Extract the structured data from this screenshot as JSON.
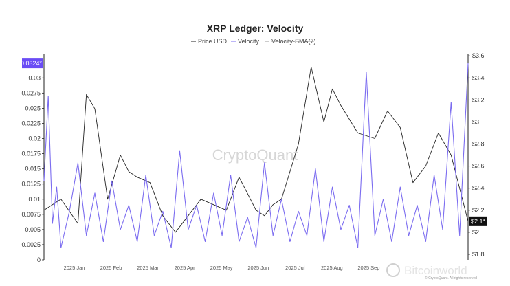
{
  "chart_data": {
    "type": "line",
    "title": "XRP Ledger: Velocity",
    "legend": {
      "placement": "top-center",
      "items": [
        {
          "name": "Price USD",
          "color": "#222222",
          "style": "solid"
        },
        {
          "name": "Velocity",
          "color": "#7b6cf0",
          "style": "solid"
        },
        {
          "name": "Velocity-SMA(7)",
          "color": "#9a9a9a",
          "style": "strikethrough"
        }
      ]
    },
    "x_labels": [
      "2025 Jan",
      "2025 Feb",
      "2025 Mar",
      "2025 Apr",
      "2025 May",
      "2025 Jun",
      "2025 Jul",
      "2025 Aug",
      "2025 Sep"
    ],
    "left_axis": {
      "label": "Velocity",
      "range": [
        0,
        0.034
      ],
      "ticks": [
        "0",
        "0.0025",
        "0.005",
        "0.0075",
        "0.01",
        "0.0125",
        "0.015",
        "0.0175",
        "0.02",
        "0.0225",
        "0.025",
        "0.0275",
        "0.03"
      ],
      "current_label": "0.0324*",
      "current_value": 0.0324
    },
    "right_axis": {
      "label": "Price USD",
      "range": [
        1.75,
        3.62
      ],
      "ticks": [
        "$1.8",
        "$2",
        "$2.2",
        "$2.4",
        "$2.6",
        "$2.8",
        "$3",
        "$3.2",
        "$3.4",
        "$3.6"
      ],
      "current_label": "$2.1*",
      "current_value": 2.1
    },
    "series": [
      {
        "name": "Price USD",
        "axis": "right",
        "color": "#222222",
        "t": [
          0,
          0.04,
          0.08,
          0.1,
          0.12,
          0.15,
          0.18,
          0.2,
          0.22,
          0.25,
          0.28,
          0.31,
          0.34,
          0.37,
          0.4,
          0.43,
          0.46,
          0.48,
          0.5,
          0.52,
          0.54,
          0.56,
          0.6,
          0.63,
          0.66,
          0.68,
          0.7,
          0.74,
          0.78,
          0.81,
          0.84,
          0.87,
          0.9,
          0.93,
          0.96,
          1.0
        ],
        "values": [
          2.2,
          2.3,
          2.08,
          3.25,
          3.12,
          2.3,
          2.7,
          2.55,
          2.5,
          2.45,
          2.15,
          2.0,
          2.15,
          2.3,
          2.25,
          2.2,
          2.5,
          2.35,
          2.2,
          2.15,
          2.25,
          2.3,
          2.8,
          3.5,
          3.0,
          3.3,
          3.15,
          2.9,
          2.85,
          3.1,
          2.95,
          2.45,
          2.6,
          2.9,
          2.7,
          2.1
        ]
      },
      {
        "name": "Velocity",
        "axis": "left",
        "color": "#7b6cf0",
        "t": [
          0,
          0.01,
          0.02,
          0.03,
          0.04,
          0.06,
          0.08,
          0.1,
          0.12,
          0.14,
          0.16,
          0.18,
          0.2,
          0.22,
          0.24,
          0.26,
          0.28,
          0.3,
          0.32,
          0.34,
          0.36,
          0.38,
          0.4,
          0.42,
          0.44,
          0.46,
          0.48,
          0.5,
          0.52,
          0.54,
          0.56,
          0.58,
          0.6,
          0.62,
          0.64,
          0.66,
          0.68,
          0.7,
          0.72,
          0.74,
          0.76,
          0.78,
          0.8,
          0.82,
          0.84,
          0.86,
          0.88,
          0.9,
          0.92,
          0.94,
          0.96,
          0.98,
          1.0
        ],
        "values": [
          0.013,
          0.027,
          0.006,
          0.012,
          0.002,
          0.008,
          0.016,
          0.004,
          0.011,
          0.003,
          0.013,
          0.005,
          0.009,
          0.003,
          0.014,
          0.004,
          0.008,
          0.002,
          0.018,
          0.005,
          0.009,
          0.003,
          0.011,
          0.004,
          0.014,
          0.003,
          0.007,
          0.002,
          0.016,
          0.004,
          0.01,
          0.003,
          0.008,
          0.004,
          0.015,
          0.003,
          0.012,
          0.005,
          0.009,
          0.002,
          0.031,
          0.004,
          0.01,
          0.003,
          0.012,
          0.004,
          0.009,
          0.003,
          0.014,
          0.005,
          0.026,
          0.004,
          0.0324
        ]
      },
      {
        "name": "Velocity-SMA(7)",
        "axis": "left",
        "color": "#9a9a9a",
        "visible": false,
        "t": [],
        "values": []
      }
    ]
  },
  "watermarks": {
    "center": "CryptoQuant",
    "bottom_right": "Bitcoinworld",
    "copyright": "© CryptoQuant. All rights reserved"
  }
}
